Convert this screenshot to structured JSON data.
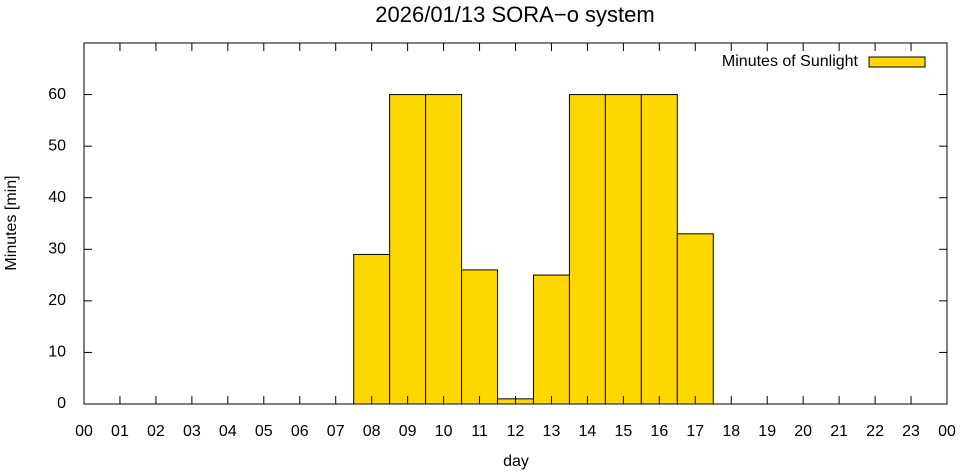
{
  "chart_data": {
    "type": "bar",
    "title": "2026/01/13 SORA−o system",
    "x_label": "day",
    "y_label": "Minutes [min]",
    "x": [
      0,
      1,
      2,
      3,
      4,
      5,
      6,
      7,
      8,
      9,
      10,
      11,
      12,
      13,
      14,
      15,
      16,
      17,
      18,
      19,
      20,
      21,
      22,
      23
    ],
    "series": [
      {
        "name": "Minutes of Sunlight",
        "color": "#ffd700",
        "values": [
          0,
          0,
          0,
          0,
          0,
          0,
          0,
          0,
          29,
          60,
          60,
          26,
          1,
          25,
          60,
          60,
          60,
          33,
          0,
          0,
          0,
          0,
          0,
          0
        ]
      }
    ],
    "xlim": [
      0,
      24
    ],
    "xticks": [
      {
        "value": 0,
        "label": "00"
      },
      {
        "value": 1,
        "label": "01"
      },
      {
        "value": 2,
        "label": "02"
      },
      {
        "value": 3,
        "label": "03"
      },
      {
        "value": 4,
        "label": "04"
      },
      {
        "value": 5,
        "label": "05"
      },
      {
        "value": 6,
        "label": "06"
      },
      {
        "value": 7,
        "label": "07"
      },
      {
        "value": 8,
        "label": "08"
      },
      {
        "value": 9,
        "label": "09"
      },
      {
        "value": 10,
        "label": "10"
      },
      {
        "value": 11,
        "label": "11"
      },
      {
        "value": 12,
        "label": "12"
      },
      {
        "value": 13,
        "label": "13"
      },
      {
        "value": 14,
        "label": "14"
      },
      {
        "value": 15,
        "label": "15"
      },
      {
        "value": 16,
        "label": "16"
      },
      {
        "value": 17,
        "label": "17"
      },
      {
        "value": 18,
        "label": "18"
      },
      {
        "value": 19,
        "label": "19"
      },
      {
        "value": 20,
        "label": "20"
      },
      {
        "value": 21,
        "label": "21"
      },
      {
        "value": 22,
        "label": "22"
      },
      {
        "value": 23,
        "label": "23"
      },
      {
        "value": 24,
        "label": "00"
      }
    ],
    "ylim": [
      0,
      70
    ],
    "yticks": [
      0,
      10,
      20,
      30,
      40,
      50,
      60
    ],
    "legend": "top-right"
  }
}
